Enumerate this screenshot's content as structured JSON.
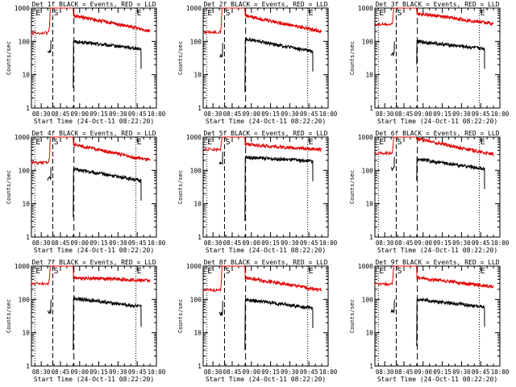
{
  "figure": {
    "start_time_label": "Start Time (24-Oct-11 08:22:20)",
    "y_label": "Counts/sec",
    "colors": {
      "events": "#000000",
      "lld": "#e00000",
      "axes": "#000000",
      "background": "#ffffff"
    }
  },
  "chart_data": [
    {
      "type": "line",
      "title": "Det 1f BLACK = Events, RED = LLD",
      "xlabel": "Start Time (24-Oct-11 08:22:20)",
      "ylabel": "Counts/sec",
      "yscale": "log",
      "ylim": [
        1,
        1000
      ],
      "xlim": [
        "08:22:20",
        "10:00"
      ],
      "x_ticks": [
        "08:30",
        "08:45",
        "09:00",
        "09:15",
        "09:30",
        "09:45",
        "10:00"
      ],
      "y_ticks": [
        "1",
        "10",
        "100",
        "1000"
      ],
      "markers": [
        {
          "label": "E",
          "time": "08:25"
        },
        {
          "label": "S",
          "time": "08:39"
        },
        {
          "label": "E",
          "time": "09:44"
        }
      ],
      "series": [
        {
          "name": "Events",
          "color": "#000000",
          "start": "08:35",
          "lead": {
            "base": 50,
            "peak": 60
          },
          "decay": {
            "start": "08:55",
            "end": "09:48",
            "from": 100,
            "to": 60,
            "spike_min": 4
          }
        },
        {
          "name": "LLD",
          "color": "#e00000",
          "pre": {
            "start": "08:22:20",
            "end": "08:36",
            "level": 180
          },
          "decay": {
            "start": "08:55",
            "end": "09:55",
            "from": 600,
            "to": 210
          }
        }
      ]
    },
    {
      "type": "line",
      "title": "Det 2f BLACK = Events, RED = LLD",
      "xlabel": "Start Time (24-Oct-11 08:22:20)",
      "ylabel": "Counts/sec",
      "yscale": "log",
      "ylim": [
        1,
        1000
      ],
      "xlim": [
        "08:22:20",
        "10:00"
      ],
      "x_ticks": [
        "08:30",
        "08:45",
        "09:00",
        "09:15",
        "09:30",
        "09:45",
        "10:00"
      ],
      "y_ticks": [
        "1",
        "10",
        "100",
        "1000"
      ],
      "markers": [
        {
          "label": "E",
          "time": "08:25"
        },
        {
          "label": "S",
          "time": "08:39"
        },
        {
          "label": "E",
          "time": "09:44"
        }
      ],
      "series": [
        {
          "name": "Events",
          "color": "#000000",
          "start": "08:35",
          "lead": {
            "base": 35,
            "peak": 50
          },
          "decay": {
            "start": "08:55",
            "end": "09:48",
            "from": 120,
            "to": 50,
            "spike_min": 3
          }
        },
        {
          "name": "LLD",
          "color": "#e00000",
          "pre": {
            "start": "08:22:20",
            "end": "08:36",
            "level": 190
          },
          "decay": {
            "start": "08:55",
            "end": "09:55",
            "from": 600,
            "to": 200
          }
        }
      ]
    },
    {
      "type": "line",
      "title": "Det 3f BLACK = Events, RED = LLD",
      "xlabel": "Start Time (24-Oct-11 08:22:20)",
      "ylabel": "Counts/sec",
      "yscale": "log",
      "ylim": [
        1,
        1000
      ],
      "xlim": [
        "08:22:20",
        "10:00"
      ],
      "x_ticks": [
        "08:30",
        "08:45",
        "09:00",
        "09:15",
        "09:30",
        "09:45",
        "10:00"
      ],
      "y_ticks": [
        "1",
        "10",
        "100",
        "1000"
      ],
      "markers": [
        {
          "label": "E",
          "time": "08:25"
        },
        {
          "label": "S",
          "time": "08:39"
        },
        {
          "label": "E",
          "time": "09:44"
        }
      ],
      "series": [
        {
          "name": "Events",
          "color": "#000000",
          "start": "08:35",
          "lead": {
            "base": 40,
            "peak": 55
          },
          "decay": {
            "start": "08:55",
            "end": "09:48",
            "from": 100,
            "to": 60,
            "spike_min": 20
          }
        },
        {
          "name": "LLD",
          "color": "#e00000",
          "pre": {
            "start": "08:22:20",
            "end": "08:36",
            "level": 330
          },
          "decay": {
            "start": "08:55",
            "end": "09:55",
            "from": 700,
            "to": 340
          }
        }
      ]
    },
    {
      "type": "line",
      "title": "Det 4f BLACK = Events, RED = LLD",
      "xlabel": "Start Time (24-Oct-11 08:22:20)",
      "ylabel": "Counts/sec",
      "yscale": "log",
      "ylim": [
        1,
        1000
      ],
      "xlim": [
        "08:22:20",
        "10:00"
      ],
      "x_ticks": [
        "08:30",
        "08:45",
        "09:00",
        "09:15",
        "09:30",
        "09:45",
        "10:00"
      ],
      "y_ticks": [
        "1",
        "10",
        "100",
        "1000"
      ],
      "markers": [
        {
          "label": "E",
          "time": "08:25"
        },
        {
          "label": "S",
          "time": "08:39"
        },
        {
          "label": "E",
          "time": "09:44"
        }
      ],
      "series": [
        {
          "name": "Events",
          "color": "#000000",
          "start": "08:35",
          "lead": {
            "base": 55,
            "peak": 70
          },
          "decay": {
            "start": "08:55",
            "end": "09:48",
            "from": 110,
            "to": 50,
            "spike_min": 4
          }
        },
        {
          "name": "LLD",
          "color": "#e00000",
          "pre": {
            "start": "08:22:20",
            "end": "08:36",
            "level": 170
          },
          "decay": {
            "start": "08:55",
            "end": "09:55",
            "from": 600,
            "to": 200
          }
        }
      ]
    },
    {
      "type": "line",
      "title": "Det 5f BLACK = Events, RED = LLD",
      "xlabel": "Start Time (24-Oct-11 08:22:20)",
      "ylabel": "Counts/sec",
      "yscale": "log",
      "ylim": [
        1,
        1000
      ],
      "xlim": [
        "08:22:20",
        "10:00"
      ],
      "x_ticks": [
        "08:30",
        "08:45",
        "09:00",
        "09:15",
        "09:30",
        "09:45",
        "10:00"
      ],
      "y_ticks": [
        "1",
        "10",
        "100",
        "1000"
      ],
      "markers": [
        {
          "label": "E",
          "time": "08:25"
        },
        {
          "label": "S",
          "time": "08:39"
        },
        {
          "label": "E",
          "time": "09:44"
        }
      ],
      "series": [
        {
          "name": "Events",
          "color": "#000000",
          "start": "08:35",
          "lead": {
            "base": 150,
            "peak": 200
          },
          "decay": {
            "start": "08:55",
            "end": "09:48",
            "from": 250,
            "to": 190,
            "spike_min": 3
          }
        },
        {
          "name": "LLD",
          "color": "#e00000",
          "pre": {
            "start": "08:22:20",
            "end": "08:36",
            "level": 430
          },
          "decay": {
            "start": "08:55",
            "end": "09:55",
            "from": 600,
            "to": 420
          }
        }
      ]
    },
    {
      "type": "line",
      "title": "Det 6f BLACK = Events, RED = LLD",
      "xlabel": "Start Time (24-Oct-11 08:22:20)",
      "ylabel": "Counts/sec",
      "yscale": "log",
      "ylim": [
        1,
        1000
      ],
      "xlim": [
        "08:22:20",
        "10:00"
      ],
      "x_ticks": [
        "08:30",
        "08:45",
        "09:00",
        "09:15",
        "09:30",
        "09:45",
        "10:00"
      ],
      "y_ticks": [
        "1",
        "10",
        "100",
        "1000"
      ],
      "markers": [
        {
          "label": "E",
          "time": "08:25"
        },
        {
          "label": "S",
          "time": "08:39"
        },
        {
          "label": "E",
          "time": "09:44"
        }
      ],
      "series": [
        {
          "name": "Events",
          "color": "#000000",
          "start": "08:35",
          "lead": {
            "base": 110,
            "peak": 140
          },
          "decay": {
            "start": "08:55",
            "end": "09:48",
            "from": 220,
            "to": 110,
            "spike_min": 50
          }
        },
        {
          "name": "LLD",
          "color": "#e00000",
          "pre": {
            "start": "08:22:20",
            "end": "08:36",
            "level": 330
          },
          "decay": {
            "start": "08:55",
            "end": "09:55",
            "from": 900,
            "to": 300
          }
        }
      ]
    },
    {
      "type": "line",
      "title": "Det 7f BLACK = Events, RED = LLD",
      "xlabel": "Start Time (24-Oct-11 08:22:20)",
      "ylabel": "Counts/sec",
      "yscale": "log",
      "ylim": [
        1,
        1000
      ],
      "xlim": [
        "08:22:20",
        "10:00"
      ],
      "x_ticks": [
        "08:30",
        "08:45",
        "09:00",
        "09:15",
        "09:30",
        "09:45",
        "10:00"
      ],
      "y_ticks": [
        "1",
        "10",
        "100",
        "1000"
      ],
      "markers": [
        {
          "label": "E",
          "time": "08:25"
        },
        {
          "label": "S",
          "time": "08:39"
        },
        {
          "label": "E",
          "time": "09:44"
        }
      ],
      "series": [
        {
          "name": "Events",
          "color": "#000000",
          "start": "08:35",
          "lead": {
            "base": 40,
            "peak": 55
          },
          "decay": {
            "start": "08:55",
            "end": "09:48",
            "from": 110,
            "to": 60,
            "spike_min": 3
          }
        },
        {
          "name": "LLD",
          "color": "#e00000",
          "pre": {
            "start": "08:22:20",
            "end": "08:36",
            "level": 300
          },
          "decay": {
            "start": "08:55",
            "end": "09:55",
            "from": 450,
            "to": 370
          }
        }
      ]
    },
    {
      "type": "line",
      "title": "Det 8f BLACK = Events, RED = LLD",
      "xlabel": "Start Time (24-Oct-11 08:22:20)",
      "ylabel": "Counts/sec",
      "yscale": "log",
      "ylim": [
        1,
        1000
      ],
      "xlim": [
        "08:22:20",
        "10:00"
      ],
      "x_ticks": [
        "08:30",
        "08:45",
        "09:00",
        "09:15",
        "09:30",
        "09:45",
        "10:00"
      ],
      "y_ticks": [
        "1",
        "10",
        "100",
        "1000"
      ],
      "markers": [
        {
          "label": "E",
          "time": "08:25"
        },
        {
          "label": "S",
          "time": "08:39"
        },
        {
          "label": "E",
          "time": "09:44"
        }
      ],
      "series": [
        {
          "name": "Events",
          "color": "#000000",
          "start": "08:35",
          "lead": {
            "base": 35,
            "peak": 50
          },
          "decay": {
            "start": "08:55",
            "end": "09:48",
            "from": 100,
            "to": 55,
            "spike_min": 3
          }
        },
        {
          "name": "LLD",
          "color": "#e00000",
          "pre": {
            "start": "08:22:20",
            "end": "08:36",
            "level": 190
          },
          "decay": {
            "start": "08:55",
            "end": "09:55",
            "from": 450,
            "to": 190
          }
        }
      ]
    },
    {
      "type": "line",
      "title": "Det 9f BLACK = Events, RED = LLD",
      "xlabel": "Start Time (24-Oct-11 08:22:20)",
      "ylabel": "Counts/sec",
      "yscale": "log",
      "ylim": [
        1,
        1000
      ],
      "xlim": [
        "08:22:20",
        "10:00"
      ],
      "x_ticks": [
        "08:30",
        "08:45",
        "09:00",
        "09:15",
        "09:30",
        "09:45",
        "10:00"
      ],
      "y_ticks": [
        "1",
        "10",
        "100",
        "1000"
      ],
      "markers": [
        {
          "label": "E",
          "time": "08:25"
        },
        {
          "label": "S",
          "time": "08:39"
        },
        {
          "label": "E",
          "time": "09:44"
        }
      ],
      "series": [
        {
          "name": "Events",
          "color": "#000000",
          "start": "08:35",
          "lead": {
            "base": 40,
            "peak": 55
          },
          "decay": {
            "start": "08:55",
            "end": "09:48",
            "from": 100,
            "to": 60,
            "spike_min": 4
          }
        },
        {
          "name": "LLD",
          "color": "#e00000",
          "pre": {
            "start": "08:22:20",
            "end": "08:36",
            "level": 290
          },
          "decay": {
            "start": "08:55",
            "end": "09:55",
            "from": 450,
            "to": 240
          }
        }
      ]
    }
  ]
}
